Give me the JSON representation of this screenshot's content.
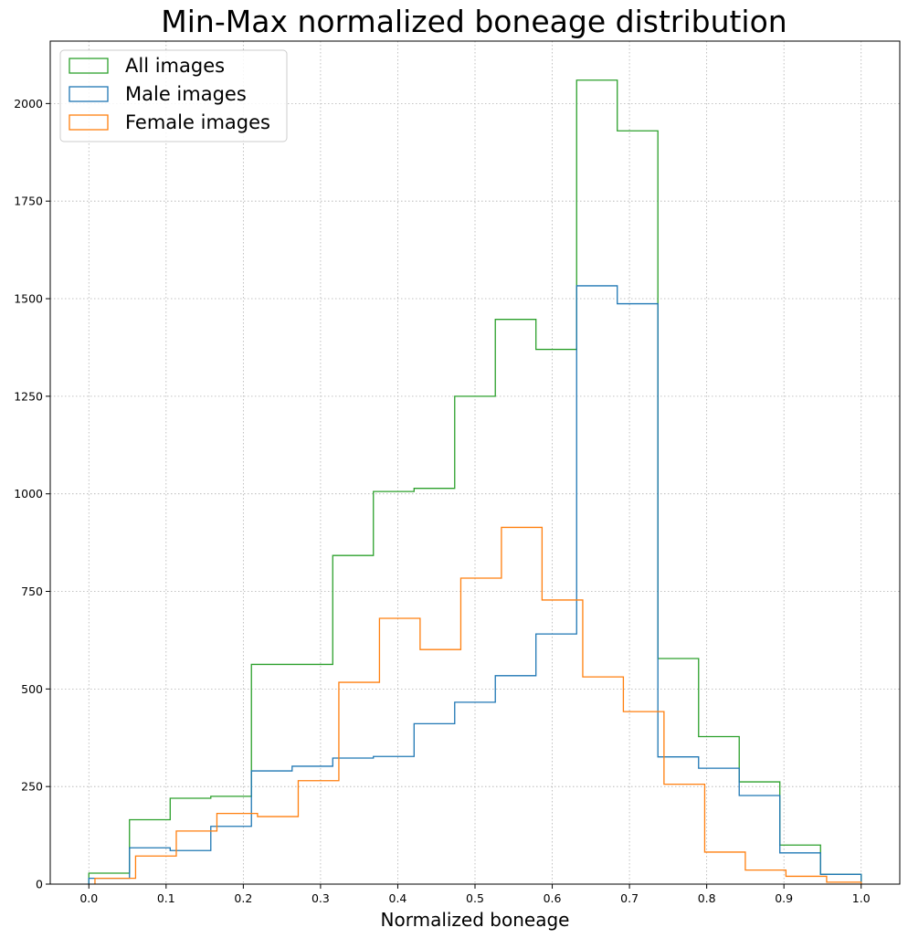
{
  "chart_data": {
    "type": "histogram",
    "title": "Min-Max normalized boneage distribution",
    "xlabel": "Normalized boneage",
    "ylabel": "",
    "xlim": [
      -0.05,
      1.05
    ],
    "ylim": [
      0,
      2160
    ],
    "xticks": [
      "0.0",
      "0.1",
      "0.2",
      "0.3",
      "0.4",
      "0.5",
      "0.6",
      "0.7",
      "0.8",
      "0.9",
      "1.0"
    ],
    "yticks": [
      "0",
      "250",
      "500",
      "750",
      "1000",
      "1250",
      "1500",
      "1750",
      "2000"
    ],
    "grid": true,
    "histtype": "step",
    "legend_position": "top-left",
    "series": [
      {
        "name": "All images",
        "color": "#2ca02c",
        "edges": [
          0.0,
          0.0526,
          0.1053,
          0.1579,
          0.2105,
          0.2632,
          0.3158,
          0.3684,
          0.4211,
          0.4737,
          0.5263,
          0.5789,
          0.6316,
          0.6842,
          0.7368,
          0.7895,
          0.8421,
          0.8947,
          0.9474,
          1.0
        ],
        "counts": [
          28,
          165,
          220,
          225,
          563,
          563,
          842,
          1006,
          1014,
          1250,
          1447,
          1370,
          2060,
          1930,
          578,
          378,
          262,
          100,
          25
        ]
      },
      {
        "name": "Male images",
        "color": "#1f77b4",
        "edges": [
          0.0,
          0.0526,
          0.1053,
          0.1579,
          0.2105,
          0.2632,
          0.3158,
          0.3684,
          0.4211,
          0.4737,
          0.5263,
          0.5789,
          0.6316,
          0.6842,
          0.7368,
          0.7895,
          0.8421,
          0.8947,
          0.9474,
          1.0
        ],
        "counts": [
          15,
          93,
          86,
          148,
          290,
          302,
          323,
          327,
          411,
          466,
          534,
          641,
          1533,
          1487,
          326,
          297,
          227,
          80,
          25
        ]
      },
      {
        "name": "Female images",
        "color": "#ff7f0e",
        "edges": [
          0.0079,
          0.0605,
          0.1132,
          0.1658,
          0.2184,
          0.2711,
          0.3237,
          0.3763,
          0.4289,
          0.4816,
          0.5342,
          0.5868,
          0.6395,
          0.6921,
          0.7447,
          0.7974,
          0.85,
          0.9026,
          0.9553,
          1.0
        ],
        "counts": [
          15,
          72,
          136,
          181,
          173,
          265,
          517,
          681,
          601,
          784,
          914,
          728,
          531,
          442,
          256,
          82,
          36,
          20,
          5
        ]
      }
    ]
  }
}
